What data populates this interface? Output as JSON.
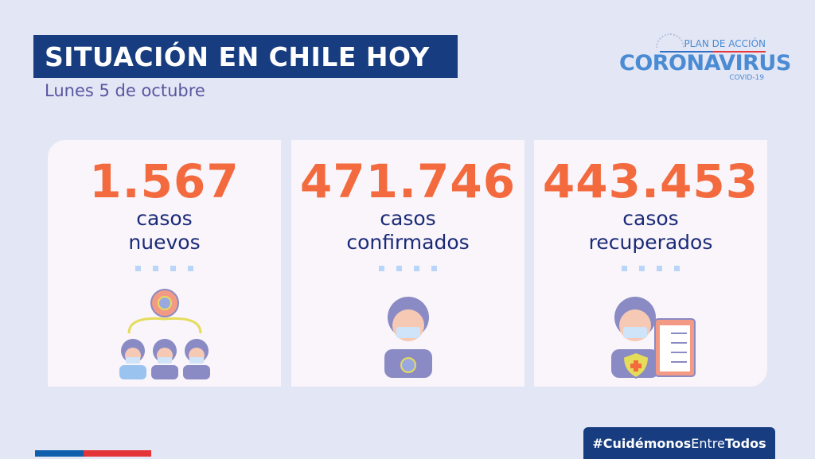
{
  "header": {
    "title": "SITUACIÓN EN CHILE HOY",
    "date": "Lunes 5 de octubre"
  },
  "logo": {
    "plan": "PLAN DE ACCIÓN",
    "name": "CORONAVIRUS",
    "sub": "COVID-19"
  },
  "cards": [
    {
      "value": "1.567",
      "line1": "casos",
      "line2": "nuevos",
      "icon": "people-infection-spread-icon"
    },
    {
      "value": "471.746",
      "line1": "casos",
      "line2": "confirmados",
      "icon": "masked-person-virus-icon"
    },
    {
      "value": "443.453",
      "line1": "casos",
      "line2": "recuperados",
      "icon": "masked-person-clipboard-icon"
    }
  ],
  "hashtag": {
    "part1": "#Cuidémonos",
    "part2": "Entre",
    "part3": "Todos"
  },
  "colors": {
    "accent": "#f26a3e",
    "navy": "#173d80",
    "label": "#1b2a78",
    "background": "#e3e6f4"
  }
}
